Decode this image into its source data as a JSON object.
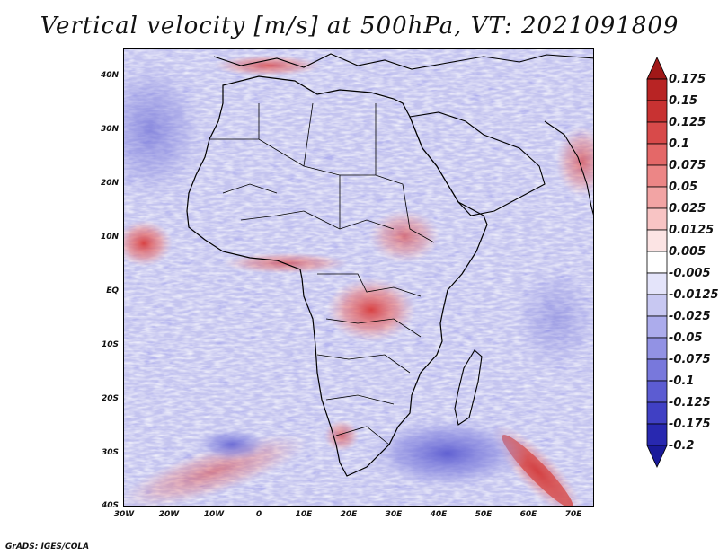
{
  "title": "Vertical velocity [m/s] at 500hPa, VT: 2021091809",
  "credit": "GrADS: IGES/COLA",
  "axes": {
    "lat_ticks": [
      "40N",
      "30N",
      "20N",
      "10N",
      "EQ",
      "10S",
      "20S",
      "30S",
      "40S"
    ],
    "lon_ticks": [
      "30W",
      "20W",
      "10W",
      "0",
      "10E",
      "20E",
      "30E",
      "40E",
      "50E",
      "60E",
      "70E"
    ]
  },
  "colorbar": {
    "labels": [
      "0.175",
      "0.15",
      "0.125",
      "0.1",
      "0.075",
      "0.05",
      "0.025",
      "0.0125",
      "0.005",
      "-0.005",
      "-0.0125",
      "-0.025",
      "-0.05",
      "-0.075",
      "-0.1",
      "-0.125",
      "-0.175",
      "-0.2"
    ],
    "colors": [
      "#a01818",
      "#b82424",
      "#c83232",
      "#d84a4a",
      "#e46868",
      "#ec8686",
      "#f2a4a4",
      "#f8c4c4",
      "#fce4e4",
      "#ffffff",
      "#e4e4fa",
      "#c8c8f2",
      "#acacec",
      "#9292e4",
      "#7878dc",
      "#5c5cd2",
      "#4040c4",
      "#2828b0",
      "#1a1a9a"
    ]
  },
  "map": {
    "lon_range": [
      -30,
      75
    ],
    "lat_range": [
      -40,
      45
    ],
    "ocean_color": "#c6c6f0",
    "land_color": "#c9c9ef",
    "border_color": "#000000"
  }
}
